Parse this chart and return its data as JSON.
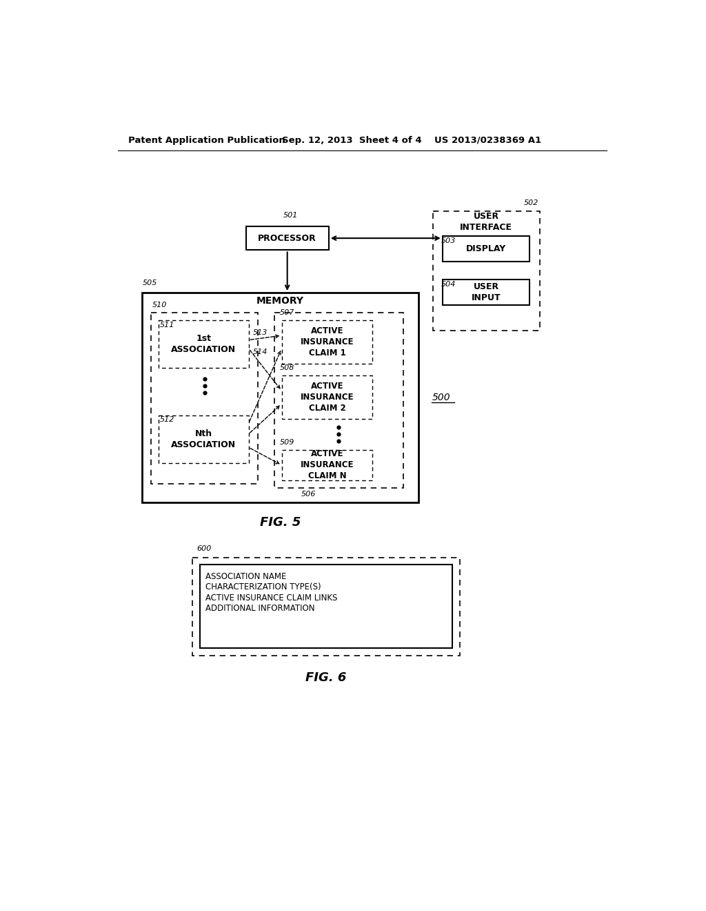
{
  "bg_color": "#ffffff",
  "header_left": "Patent Application Publication",
  "header_mid": "Sep. 12, 2013  Sheet 4 of 4",
  "header_right": "US 2013/0238369 A1",
  "fig5_label": "FIG. 5",
  "fig6_label": "FIG. 6",
  "label_500": "500",
  "label_501": "501",
  "label_502": "502",
  "label_503": "503",
  "label_504": "504",
  "label_505": "505",
  "label_506": "506",
  "label_507": "507",
  "label_508": "508",
  "label_509": "509",
  "label_510": "510",
  "label_511": "511",
  "label_512": "512",
  "label_513": "513",
  "label_514": "514",
  "label_600": "600"
}
